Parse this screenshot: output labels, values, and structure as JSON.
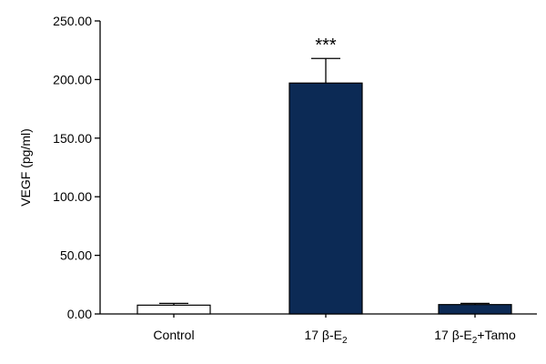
{
  "chart_data": {
    "type": "bar",
    "ylabel": "VEGF (pg/ml)",
    "ylim": [
      0,
      250
    ],
    "yticks": [
      "0.00",
      "50.00",
      "100.00",
      "150.00",
      "200.00",
      "250.00"
    ],
    "categories": [
      {
        "base": "Control",
        "sub": "",
        "tail": ""
      },
      {
        "base": "17 β-E",
        "sub": "2",
        "tail": ""
      },
      {
        "base": "17 β-E",
        "sub": "2",
        "tail": "+Tamo"
      }
    ],
    "values": [
      7.5,
      197,
      8
    ],
    "errors": [
      1.5,
      21,
      1
    ],
    "annotations": [
      "",
      "***",
      ""
    ],
    "bar_colors": [
      "#ffffff",
      "#0c2a55",
      "#0c2a55"
    ],
    "grid": false
  }
}
